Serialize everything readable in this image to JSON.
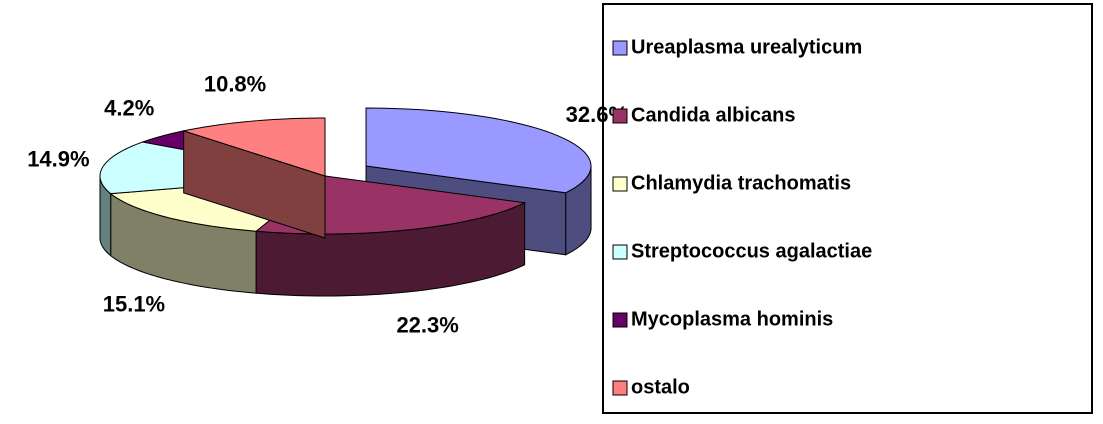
{
  "chart_data": {
    "type": "pie",
    "categories": [
      "Ureaplasma urealyticum",
      "Candida albicans",
      "Chlamydia trachomatis",
      "Streptococcus agalactiae",
      "Mycoplasma hominis",
      "ostalo"
    ],
    "values": [
      32.6,
      22.3,
      15.1,
      14.9,
      4.2,
      10.8
    ],
    "value_labels": [
      "32.6%",
      "22.3%",
      "15.1%",
      "14.9%",
      "4.2%",
      "10.8%"
    ],
    "colors": [
      "#9999ff",
      "#993366",
      "#ffffcc",
      "#ccffff",
      "#660066",
      "#ff8080"
    ],
    "legend": "right"
  }
}
